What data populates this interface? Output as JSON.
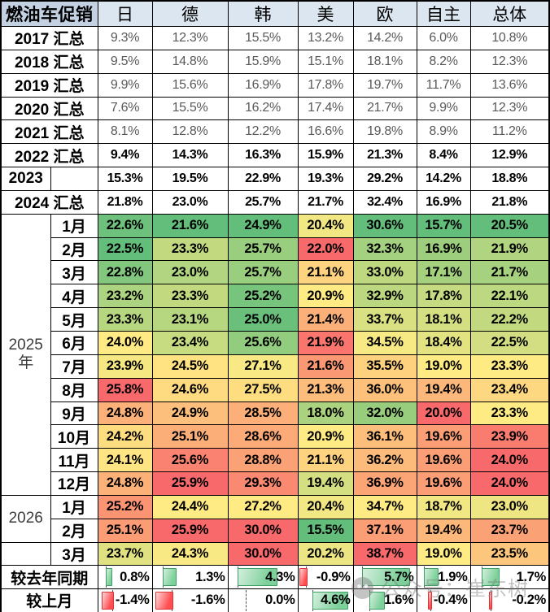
{
  "chart_data": {
    "type": "heatmap",
    "title": "燃油车促销",
    "columns": [
      "日",
      "德",
      "韩",
      "美",
      "欧",
      "自主",
      "总体"
    ],
    "unit": "%",
    "color_scale": {
      "low": "#63BE7B",
      "mid": "#FFEB84",
      "high": "#F8696B",
      "note": "month rows colored per column: min=green, median=yellow, max=red"
    },
    "year_rows": [
      {
        "label": "2017 汇总",
        "muted": true,
        "values": [
          9.3,
          12.3,
          15.5,
          13.2,
          14.2,
          6.0,
          10.8
        ]
      },
      {
        "label": "2018 汇总",
        "muted": true,
        "values": [
          9.5,
          14.8,
          15.9,
          15.1,
          18.1,
          8.2,
          12.3
        ]
      },
      {
        "label": "2019 汇总",
        "muted": true,
        "values": [
          9.9,
          15.6,
          16.9,
          17.8,
          19.7,
          11.7,
          13.6
        ]
      },
      {
        "label": "2020 汇总",
        "muted": true,
        "values": [
          7.6,
          15.5,
          16.2,
          17.4,
          21.7,
          9.9,
          12.3
        ]
      },
      {
        "label": "2021 汇总",
        "muted": true,
        "values": [
          8.1,
          12.8,
          12.2,
          16.6,
          19.8,
          8.9,
          11.2
        ]
      },
      {
        "label": "2022 汇总",
        "muted": false,
        "values": [
          9.4,
          14.3,
          16.3,
          15.9,
          21.3,
          8.4,
          12.9
        ]
      },
      {
        "label": "2023",
        "split": true,
        "muted": false,
        "values": [
          15.3,
          19.5,
          22.9,
          19.3,
          29.2,
          14.2,
          18.8
        ]
      },
      {
        "label": "2024 汇总",
        "muted": false,
        "values": [
          21.8,
          23.0,
          25.7,
          21.7,
          32.4,
          16.9,
          21.8
        ]
      }
    ],
    "month_sections": [
      {
        "year_label": "2025年",
        "rows": [
          {
            "month": "1月",
            "values": [
              22.6,
              21.6,
              24.9,
              20.4,
              30.6,
              15.7,
              20.5
            ]
          },
          {
            "month": "2月",
            "values": [
              22.5,
              23.3,
              25.7,
              22.0,
              32.3,
              16.9,
              21.9
            ]
          },
          {
            "month": "3月",
            "values": [
              22.8,
              23.0,
              25.7,
              21.1,
              33.0,
              17.1,
              21.7
            ]
          },
          {
            "month": "4月",
            "values": [
              23.2,
              23.3,
              25.2,
              20.9,
              32.9,
              17.8,
              22.1
            ]
          },
          {
            "month": "5月",
            "values": [
              23.3,
              23.1,
              25.0,
              21.4,
              33.7,
              18.1,
              22.2
            ]
          },
          {
            "month": "6月",
            "values": [
              24.0,
              23.4,
              25.6,
              21.9,
              34.5,
              18.4,
              22.5
            ]
          },
          {
            "month": "7月",
            "values": [
              23.9,
              24.5,
              27.1,
              21.6,
              35.5,
              19.0,
              23.3
            ]
          },
          {
            "month": "8月",
            "values": [
              25.8,
              24.6,
              27.5,
              21.3,
              36.0,
              19.4,
              23.4
            ]
          },
          {
            "month": "9月",
            "values": [
              24.8,
              24.9,
              28.5,
              18.0,
              32.0,
              20.0,
              23.3
            ]
          },
          {
            "month": "10月",
            "values": [
              24.2,
              25.1,
              28.6,
              20.9,
              36.1,
              19.6,
              23.9
            ]
          },
          {
            "month": "11月",
            "values": [
              24.1,
              25.6,
              28.8,
              21.1,
              36.2,
              19.6,
              24.0
            ]
          },
          {
            "month": "12月",
            "values": [
              24.8,
              25.9,
              29.3,
              19.4,
              36.9,
              19.6,
              24.0
            ]
          }
        ]
      },
      {
        "year_label": "2026",
        "rows": [
          {
            "month": "1月",
            "values": [
              25.2,
              24.4,
              27.2,
              20.4,
              34.7,
              18.7,
              23.0
            ]
          },
          {
            "month": "2月",
            "values": [
              25.1,
              25.9,
              30.0,
              15.5,
              37.1,
              19.4,
              23.7
            ]
          }
        ]
      },
      {
        "year_label": "",
        "rows": [
          {
            "month": "3月",
            "values": [
              23.7,
              24.3,
              30.0,
              20.2,
              38.7,
              19.0,
              23.5
            ]
          }
        ]
      }
    ],
    "summary_rows": [
      {
        "label": "较去年同期",
        "values": [
          0.8,
          1.3,
          4.3,
          -0.9,
          5.7,
          1.9,
          1.7
        ]
      },
      {
        "label": "较上月",
        "values": [
          -1.4,
          -1.6,
          0.0,
          4.6,
          1.6,
          -0.4,
          -0.2
        ]
      }
    ],
    "databar_colors": {
      "positive": "#70C88F",
      "negative": "#FF4B4E"
    }
  },
  "watermark": {
    "text": "公众号：崔东树"
  }
}
